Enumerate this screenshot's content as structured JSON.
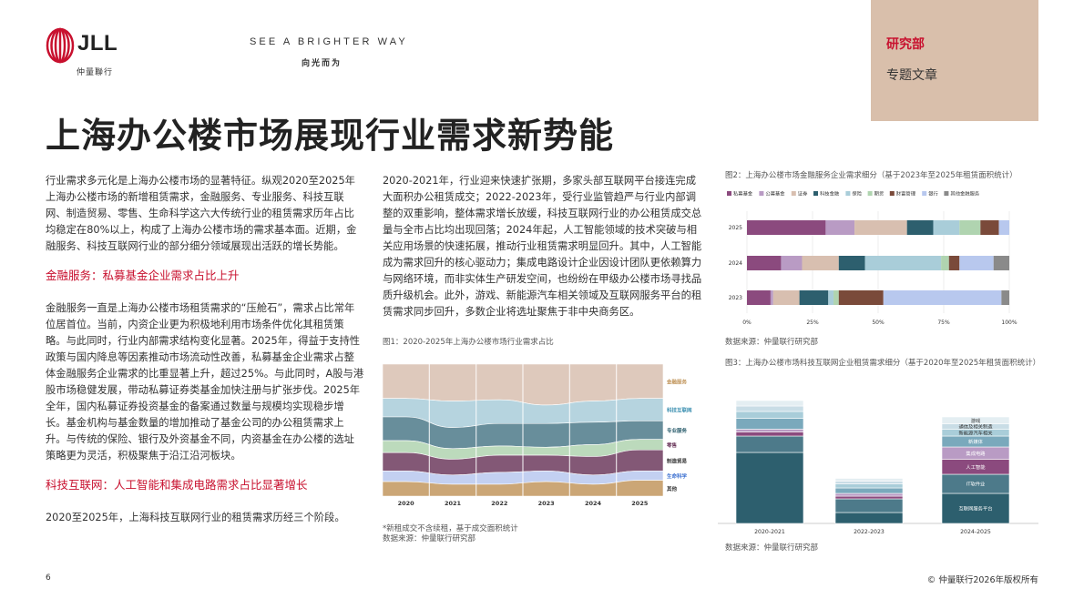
{
  "header": {
    "logo_text": "JLL",
    "logo_sub": "仲量聯行",
    "tagline": "SEE A BRIGHTER WAY",
    "tagline_cn": "向光而为",
    "dept": "研究部",
    "article_type": "专题文章"
  },
  "title": "上海办公楼市场展现行业需求新势能",
  "col1": {
    "p1": "行业需求多元化是上海办公楼市场的显著特征。纵观2020至2025年上海办公楼市场的新增租赁需求，金融服务、专业服务、科技互联网、制造贸易、零售、生命科学这六大传统行业的租赁需求历年占比均稳定在80%以上，构成了上海办公楼市场的需求基本面。近期，金融服务、科技互联网行业的部分细分领域展现出活跃的增长势能。",
    "h1": "金融服务：私募基金企业需求占比上升",
    "p2": "金融服务一直是上海办公楼市场租赁需求的“压舱石”，需求占比常年位居首位。当前，内资企业更为积极地利用市场条件优化其租赁策略。与此同时，行业内部需求结构变化显著。2025年，得益于支持性政策与国内降息等因素推动市场流动性改善，私募基金企业需求占整体金融服务企业需求的比重显著上升，超过25%。与此同时，A股与港股市场稳健发展，带动私募证券类基金加快注册与扩张步伐。2025年全年，国内私募证券投资基金的备案通过数量与规模均实现稳步增长。基金机构与基金数量的增加推动了基金公司的办公租赁需求上升。与传统的保险、银行及外资基金不同，内资基金在办公楼的选址策略更为灵活，积极聚焦于沿江沿河板块。",
    "h2": "科技互联网：人工智能和集成电路需求占比显著增长",
    "p3": "2020至2025年，上海科技互联网行业的租赁需求历经三个阶段。"
  },
  "col2": {
    "p1": "2020-2021年，行业迎来快速扩张期，多家头部互联网平台接连完成大面积办公租赁成交；2022-2023年，受行业监管趋严与行业内部调整的双重影响，整体需求增长放缓，科技互联网行业的办公租赁成交总量与全市占比均出现回落；2024年起，人工智能领域的技术突破与相关应用场景的快速拓展，推动行业租赁需求明显回升。其中，人工智能成为需求回升的核心驱动力；集成电路设计企业因设计团队更依赖算力与网络环境，而非实体生产研发空间，也纷纷在甲级办公楼市场寻找品质升级机会。此外，游戏、新能源汽车相关领域及互联网服务平台的租赁需求同步回升，多数企业将选址聚焦于非中央商务区。"
  },
  "fig1": {
    "title": "图1：2020-2025年上海办公楼市场行业需求占比",
    "note": "*新租成交不含续租，基于成交面积统计",
    "source": "数据来源：仲量联行研究部",
    "chart_data": {
      "type": "area",
      "x": [
        "2020",
        "2021",
        "2022",
        "2023",
        "2024",
        "2025"
      ],
      "series": [
        {
          "name": "金融服务",
          "color": "#d8bfb0",
          "values": [
            26,
            28,
            27,
            31,
            28,
            26
          ]
        },
        {
          "name": "科技互联网",
          "color": "#a9cdd9",
          "values": [
            14,
            20,
            18,
            14,
            16,
            17
          ]
        },
        {
          "name": "专业服务",
          "color": "#4d7a8a",
          "values": [
            18,
            16,
            17,
            18,
            17,
            14
          ]
        },
        {
          "name": "零售",
          "color": "#b0d4b0",
          "values": [
            9,
            8,
            7,
            6,
            9,
            8
          ]
        },
        {
          "name": "制造贸易",
          "color": "#6d3b5e",
          "values": [
            14,
            12,
            13,
            12,
            14,
            16
          ]
        },
        {
          "name": "生命科学",
          "color": "#b8c8ee",
          "values": [
            8,
            7,
            9,
            8,
            7,
            7
          ]
        },
        {
          "name": "其他",
          "color": "#c2975e",
          "values": [
            11,
            9,
            9,
            11,
            9,
            12
          ]
        }
      ]
    }
  },
  "fig2": {
    "title": "图2：上海办公楼市场金融服务企业需求细分（基于2023年至2025年租赁面积统计）",
    "source": "数据来源：仲量联行研究部",
    "chart_data": {
      "type": "bar",
      "orientation": "horizontal-stacked",
      "categories": [
        "2025",
        "2024",
        "2023"
      ],
      "series": [
        {
          "name": "私募基金",
          "color": "#8b4a7e",
          "values": [
            30,
            13,
            9
          ]
        },
        {
          "name": "公募基金",
          "color": "#b99bc4",
          "values": [
            11,
            8,
            1
          ]
        },
        {
          "name": "证券",
          "color": "#d8bfb0",
          "values": [
            20,
            14,
            10
          ]
        },
        {
          "name": "科技金融",
          "color": "#2d5f6e",
          "values": [
            10,
            10,
            11
          ]
        },
        {
          "name": "保险",
          "color": "#a9cdd9",
          "values": [
            10,
            29,
            2
          ]
        },
        {
          "name": "期货",
          "color": "#b0d4b0",
          "values": [
            8,
            3,
            2
          ]
        },
        {
          "name": "财富管理",
          "color": "#7a4a3a",
          "values": [
            7,
            4,
            17
          ]
        },
        {
          "name": "银行",
          "color": "#b8c8ee",
          "values": [
            4,
            13,
            45
          ]
        },
        {
          "name": "其他金融服务",
          "color": "#8a8a8a",
          "values": [
            0,
            6,
            3
          ]
        }
      ],
      "xticks": [
        "0%",
        "25%",
        "50%",
        "75%",
        "100%"
      ]
    }
  },
  "fig3": {
    "title": "图3：上海办公楼市场科技互联网企业租赁需求细分（基于2020年至2025年租赁面积统计）",
    "source": "数据来源：仲量联行研究部",
    "chart_data": {
      "type": "bar",
      "orientation": "vertical-stacked",
      "categories": [
        "2020-2021",
        "2022-2023",
        "2024-2025"
      ],
      "series": [
        {
          "name": "互联网服务平台",
          "color": "#2d5f6e",
          "values": [
            52,
            8,
            22
          ]
        },
        {
          "name": "IT软件业",
          "color": "#4d7a8a",
          "values": [
            12,
            10,
            14
          ]
        },
        {
          "name": "人工智能",
          "color": "#8b4a7e",
          "values": [
            3,
            2,
            11
          ]
        },
        {
          "name": "集成电路",
          "color": "#b99bc4",
          "values": [
            2,
            2,
            9
          ]
        },
        {
          "name": "新媒体",
          "color": "#7aa9bc",
          "values": [
            8,
            4,
            8
          ]
        },
        {
          "name": "新能源汽车相关",
          "color": "#a9cdd9",
          "values": [
            5,
            3,
            5
          ]
        },
        {
          "name": "通信及相关制造",
          "color": "#c9dde6",
          "values": [
            4,
            2,
            4
          ]
        },
        {
          "name": "游戏",
          "color": "#e4eef2",
          "values": [
            4,
            2,
            5
          ]
        }
      ],
      "bar_labels": [
        "互联网服务平台",
        "IT软件业",
        "人工智能",
        "集成电路",
        "新媒体",
        "新能源汽车相关",
        "通信及相关制造",
        "游戏"
      ]
    }
  },
  "footer": {
    "page": "6",
    "copyright": "© 仲量联行2026年版权所有"
  }
}
